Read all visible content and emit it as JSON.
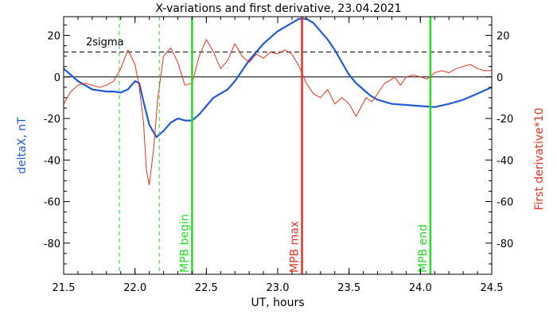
{
  "chart_data": {
    "type": "line",
    "title": "X-variations and first derivative, 23.04.2021",
    "xlabel": "UT, hours",
    "ylabel_left": "deltaX, nT",
    "ylabel_right": "First derivative*10",
    "xlim": [
      21.5,
      24.5
    ],
    "ylim": [
      -95,
      29
    ],
    "x_ticks": [
      "21.5",
      "22.0",
      "22.5",
      "23.0",
      "23.5",
      "24.0",
      "24.5"
    ],
    "y_ticks": [
      "20",
      "0",
      "-20",
      "-40",
      "-60",
      "-80"
    ],
    "threshold": {
      "label": "2sigma",
      "value": 12
    },
    "zero_line": 0,
    "colors": {
      "deltaX": "#1f5bd6",
      "derivative": "#e8321e",
      "mpb_begin": "#22dd22",
      "mpb_end": "#22dd22",
      "mpb_max": "#e8321e"
    },
    "markers": [
      {
        "label": "MPB begin",
        "x": 22.4
      },
      {
        "label": "MPB max",
        "x": 23.17
      },
      {
        "label": "MPB end",
        "x": 24.07
      }
    ],
    "dashed_markers": [
      21.89,
      22.17
    ],
    "series": [
      {
        "name": "deltaX",
        "color": "#1f5bd6",
        "points": [
          [
            21.5,
            4
          ],
          [
            21.55,
            1
          ],
          [
            21.6,
            -2
          ],
          [
            21.65,
            -4
          ],
          [
            21.7,
            -6
          ],
          [
            21.75,
            -6.5
          ],
          [
            21.8,
            -7
          ],
          [
            21.85,
            -7
          ],
          [
            21.9,
            -7.5
          ],
          [
            21.95,
            -6
          ],
          [
            22.0,
            -2
          ],
          [
            22.03,
            -3
          ],
          [
            22.06,
            -12
          ],
          [
            22.1,
            -23
          ],
          [
            22.15,
            -29
          ],
          [
            22.2,
            -26
          ],
          [
            22.25,
            -22
          ],
          [
            22.3,
            -20
          ],
          [
            22.35,
            -21
          ],
          [
            22.4,
            -21
          ],
          [
            22.45,
            -18
          ],
          [
            22.5,
            -14
          ],
          [
            22.55,
            -10
          ],
          [
            22.6,
            -8
          ],
          [
            22.65,
            -6
          ],
          [
            22.7,
            -2
          ],
          [
            22.75,
            3
          ],
          [
            22.8,
            8
          ],
          [
            22.85,
            12
          ],
          [
            22.9,
            16
          ],
          [
            22.95,
            19
          ],
          [
            23.0,
            22
          ],
          [
            23.05,
            24
          ],
          [
            23.1,
            26
          ],
          [
            23.15,
            28
          ],
          [
            23.2,
            28
          ],
          [
            23.25,
            26
          ],
          [
            23.3,
            22
          ],
          [
            23.35,
            18
          ],
          [
            23.4,
            13
          ],
          [
            23.45,
            7
          ],
          [
            23.5,
            1
          ],
          [
            23.55,
            -3
          ],
          [
            23.6,
            -6
          ],
          [
            23.65,
            -9
          ],
          [
            23.7,
            -11
          ],
          [
            23.75,
            -12
          ],
          [
            23.8,
            -13
          ],
          [
            23.9,
            -13.5
          ],
          [
            24.0,
            -14
          ],
          [
            24.1,
            -14.5
          ],
          [
            24.2,
            -13
          ],
          [
            24.3,
            -11
          ],
          [
            24.4,
            -8
          ],
          [
            24.5,
            -5
          ]
        ]
      },
      {
        "name": "First derivative*10",
        "color": "#e8321e",
        "points": [
          [
            21.5,
            -13
          ],
          [
            21.55,
            -7
          ],
          [
            21.6,
            -4
          ],
          [
            21.65,
            -3
          ],
          [
            21.7,
            -4
          ],
          [
            21.75,
            -5
          ],
          [
            21.8,
            -4
          ],
          [
            21.85,
            -2
          ],
          [
            21.9,
            4
          ],
          [
            21.95,
            13
          ],
          [
            22.0,
            6
          ],
          [
            22.03,
            -5
          ],
          [
            22.06,
            -22
          ],
          [
            22.08,
            -45
          ],
          [
            22.1,
            -52
          ],
          [
            22.13,
            -35
          ],
          [
            22.16,
            -10
          ],
          [
            22.2,
            10
          ],
          [
            22.25,
            14
          ],
          [
            22.3,
            7
          ],
          [
            22.35,
            -4
          ],
          [
            22.4,
            -3
          ],
          [
            22.45,
            10
          ],
          [
            22.5,
            18
          ],
          [
            22.55,
            12
          ],
          [
            22.6,
            4
          ],
          [
            22.65,
            8
          ],
          [
            22.7,
            16
          ],
          [
            22.75,
            10
          ],
          [
            22.8,
            7
          ],
          [
            22.85,
            11
          ],
          [
            22.9,
            9
          ],
          [
            22.95,
            12
          ],
          [
            23.0,
            11
          ],
          [
            23.05,
            13
          ],
          [
            23.1,
            11
          ],
          [
            23.15,
            5
          ],
          [
            23.2,
            -3
          ],
          [
            23.25,
            -8
          ],
          [
            23.3,
            -10
          ],
          [
            23.35,
            -6
          ],
          [
            23.4,
            -13
          ],
          [
            23.45,
            -10
          ],
          [
            23.5,
            -13
          ],
          [
            23.55,
            -19
          ],
          [
            23.58,
            -15
          ],
          [
            23.62,
            -10
          ],
          [
            23.66,
            -12
          ],
          [
            23.7,
            -8
          ],
          [
            23.75,
            -3
          ],
          [
            23.78,
            -2
          ],
          [
            23.82,
            0
          ],
          [
            23.86,
            -4
          ],
          [
            23.9,
            0
          ],
          [
            23.95,
            1
          ],
          [
            24.0,
            0
          ],
          [
            24.05,
            -1
          ],
          [
            24.1,
            2
          ],
          [
            24.15,
            3
          ],
          [
            24.2,
            2
          ],
          [
            24.25,
            4
          ],
          [
            24.3,
            5
          ],
          [
            24.35,
            6
          ],
          [
            24.4,
            4
          ],
          [
            24.45,
            3
          ],
          [
            24.5,
            3
          ]
        ]
      }
    ]
  }
}
